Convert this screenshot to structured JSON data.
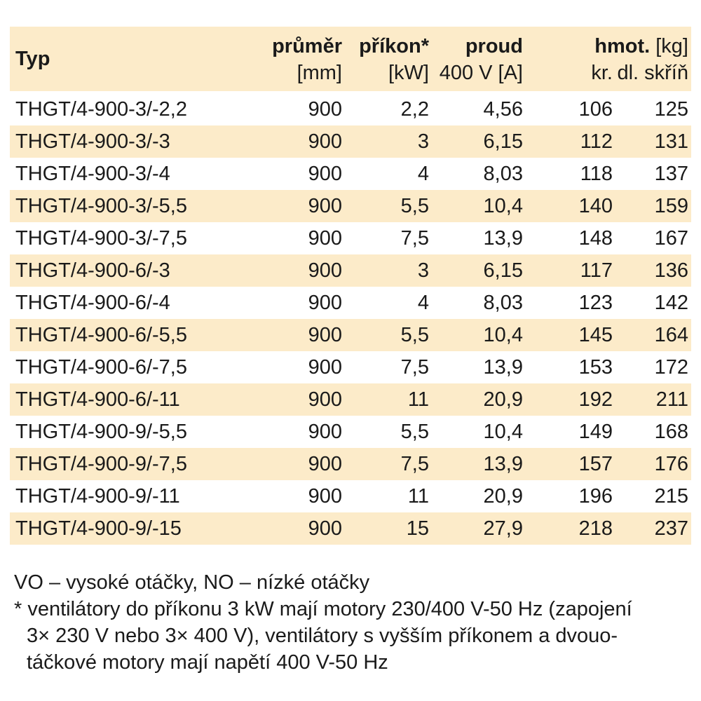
{
  "table": {
    "headers": {
      "typ": "Typ",
      "prumer": "průměr",
      "prumer_unit": "[mm]",
      "prikon": "příkon*",
      "prikon_unit": "[kW]",
      "proud": "proud",
      "proud_unit": "400 V [A]",
      "hmot": "hmot.",
      "hmot_unit": "[kg]",
      "kr": "kr.",
      "dl": "dl. skříň"
    },
    "rows": [
      [
        "THGT/4-900-3/-2,2",
        "900",
        "2,2",
        "4,56",
        "106",
        "125"
      ],
      [
        "THGT/4-900-3/-3",
        "900",
        "3",
        "6,15",
        "112",
        "131"
      ],
      [
        "THGT/4-900-3/-4",
        "900",
        "4",
        "8,03",
        "118",
        "137"
      ],
      [
        "THGT/4-900-3/-5,5",
        "900",
        "5,5",
        "10,4",
        "140",
        "159"
      ],
      [
        "THGT/4-900-3/-7,5",
        "900",
        "7,5",
        "13,9",
        "148",
        "167"
      ],
      [
        "THGT/4-900-6/-3",
        "900",
        "3",
        "6,15",
        "117",
        "136"
      ],
      [
        "THGT/4-900-6/-4",
        "900",
        "4",
        "8,03",
        "123",
        "142"
      ],
      [
        "THGT/4-900-6/-5,5",
        "900",
        "5,5",
        "10,4",
        "145",
        "164"
      ],
      [
        "THGT/4-900-6/-7,5",
        "900",
        "7,5",
        "13,9",
        "153",
        "172"
      ],
      [
        "THGT/4-900-6/-11",
        "900",
        "11",
        "20,9",
        "192",
        "211"
      ],
      [
        "THGT/4-900-9/-5,5",
        "900",
        "5,5",
        "10,4",
        "149",
        "168"
      ],
      [
        "THGT/4-900-9/-7,5",
        "900",
        "7,5",
        "13,9",
        "157",
        "176"
      ],
      [
        "THGT/4-900-9/-11",
        "900",
        "11",
        "20,9",
        "196",
        "215"
      ],
      [
        "THGT/4-900-9/-15",
        "900",
        "15",
        "27,9",
        "218",
        "237"
      ]
    ]
  },
  "notes": {
    "line1": "VO – vysoké otáčky, NO – nízké otáčky",
    "line2": "* ventilátory do příkonu 3 kW mají motory 230/400 V-50 Hz (zapojení",
    "line3": "3× 230 V nebo 3× 400 V), ventilátory s vyšším příkonem a dvouo-",
    "line4": "táčkové motory mají napětí 400 V-50 Hz"
  },
  "colors": {
    "shade": "#fcebc9",
    "text": "#1a1a1a"
  }
}
